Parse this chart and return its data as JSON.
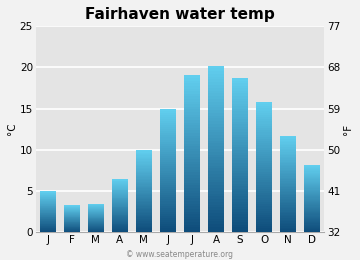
{
  "title": "Fairhaven water temp",
  "months": [
    "J",
    "F",
    "M",
    "A",
    "M",
    "J",
    "J",
    "A",
    "S",
    "O",
    "N",
    "D"
  ],
  "values_c": [
    5.0,
    3.3,
    3.5,
    6.5,
    10.0,
    15.0,
    19.0,
    20.2,
    18.7,
    15.8,
    11.7,
    8.2
  ],
  "ylim_c": [
    0,
    25
  ],
  "yticks_c": [
    0,
    5,
    10,
    15,
    20,
    25
  ],
  "yticks_f": [
    32,
    41,
    50,
    59,
    68,
    77
  ],
  "ylabel_left": "°C",
  "ylabel_right": "°F",
  "bar_color_top": "#62d0f0",
  "bar_color_bottom": "#0e4c7a",
  "background_color": "#f2f2f2",
  "plot_bg_color": "#e4e4e4",
  "grid_color": "#ffffff",
  "watermark": "© www.seatemperature.org",
  "title_fontsize": 11,
  "label_fontsize": 7.5,
  "tick_fontsize": 7.5
}
